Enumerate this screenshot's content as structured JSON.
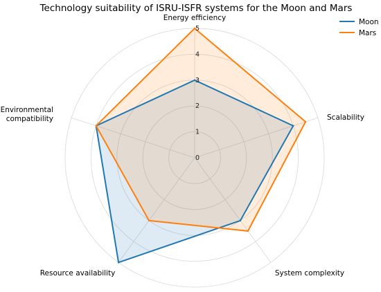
{
  "chart_data": {
    "type": "radar",
    "title": "Technology suitability of ISRU-ISFR systems for the Moon and Mars",
    "axes": [
      "Energy efficiency",
      "Scalability",
      "System complexity",
      "Resource availability",
      "Environmental\ncompatibility"
    ],
    "rlim": [
      0,
      5
    ],
    "r_ticks": [
      0,
      1,
      2,
      3,
      4,
      5
    ],
    "grid": true,
    "legend_position": "top-right",
    "series": [
      {
        "name": "Moon",
        "color": "#1f77b4",
        "values": [
          3,
          4,
          3,
          5,
          4
        ]
      },
      {
        "name": "Mars",
        "color": "#ff7f0e",
        "values": [
          5,
          4.5,
          3.5,
          3,
          4
        ]
      }
    ]
  }
}
